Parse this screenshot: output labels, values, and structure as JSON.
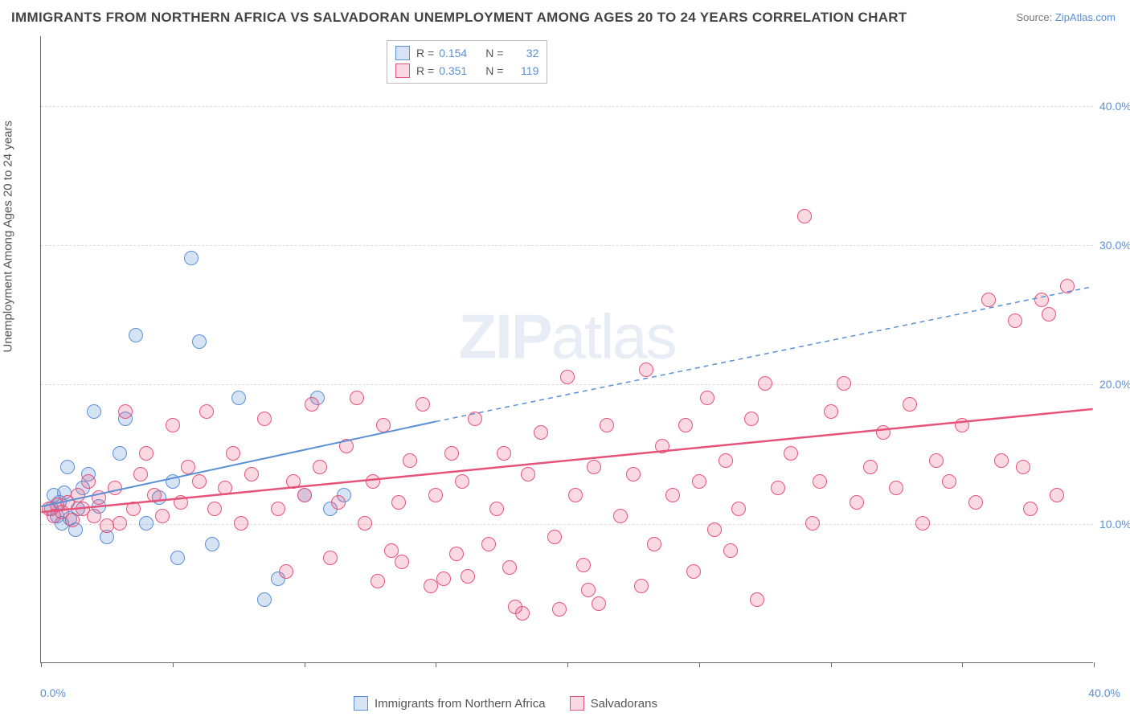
{
  "title": "IMMIGRANTS FROM NORTHERN AFRICA VS SALVADORAN UNEMPLOYMENT AMONG AGES 20 TO 24 YEARS CORRELATION CHART",
  "source_prefix": "Source: ",
  "source_name": "ZipAtlas.com",
  "y_axis_label": "Unemployment Among Ages 20 to 24 years",
  "watermark_bold": "ZIP",
  "watermark_light": "atlas",
  "chart": {
    "type": "scatter",
    "xlim": [
      0,
      40
    ],
    "ylim": [
      0,
      45
    ],
    "x_ticks": [
      0,
      5,
      10,
      15,
      20,
      25,
      30,
      35,
      40
    ],
    "x_tick_labels": {
      "0": "0.0%",
      "40": "40.0%"
    },
    "y_ticks": [
      10,
      20,
      30,
      40
    ],
    "y_tick_labels": [
      "10.0%",
      "20.0%",
      "30.0%",
      "40.0%"
    ],
    "background_color": "#ffffff",
    "grid_color": "#dddddd",
    "point_radius": 9,
    "point_border_width": 1.5,
    "point_fill_opacity": 0.25
  },
  "series": [
    {
      "key": "northern_africa",
      "label": "Immigrants from Northern Africa",
      "R": "0.154",
      "N": "32",
      "color": "#5b8fd6",
      "fill": "rgba(91,143,214,0.25)",
      "trend": {
        "x1": 0,
        "y1": 11.2,
        "x2": 15,
        "y2": 17.3,
        "x_ext": 40,
        "y_ext": 27.0,
        "dash": "6,5",
        "width": 2
      },
      "points": [
        [
          0.4,
          11
        ],
        [
          0.5,
          12
        ],
        [
          0.6,
          10.5
        ],
        [
          0.7,
          11.5
        ],
        [
          0.8,
          10
        ],
        [
          0.9,
          12.2
        ],
        [
          1.0,
          14
        ],
        [
          1.1,
          10.3
        ],
        [
          1.3,
          9.5
        ],
        [
          1.4,
          11
        ],
        [
          1.6,
          12.5
        ],
        [
          1.8,
          13.5
        ],
        [
          2.0,
          18
        ],
        [
          2.2,
          11.2
        ],
        [
          2.5,
          9
        ],
        [
          3.0,
          15
        ],
        [
          3.2,
          17.5
        ],
        [
          3.6,
          23.5
        ],
        [
          4.0,
          10
        ],
        [
          4.5,
          11.8
        ],
        [
          5.0,
          13
        ],
        [
          5.2,
          7.5
        ],
        [
          5.7,
          29
        ],
        [
          6.0,
          23
        ],
        [
          6.5,
          8.5
        ],
        [
          7.5,
          19
        ],
        [
          8.5,
          4.5
        ],
        [
          9.0,
          6
        ],
        [
          10.0,
          12
        ],
        [
          10.5,
          19
        ],
        [
          11.0,
          11
        ],
        [
          11.5,
          12
        ]
      ]
    },
    {
      "key": "salvadorans",
      "label": "Salvadorans",
      "R": "0.351",
      "N": "119",
      "color": "#e6537a",
      "fill": "rgba(230,83,122,0.22)",
      "trend": {
        "x1": 0,
        "y1": 10.8,
        "x2": 40,
        "y2": 18.2,
        "dash": "none",
        "width": 2.5
      },
      "points": [
        [
          0.3,
          11
        ],
        [
          0.5,
          10.5
        ],
        [
          0.6,
          11.3
        ],
        [
          0.8,
          10.8
        ],
        [
          1.0,
          11.5
        ],
        [
          1.2,
          10.2
        ],
        [
          1.4,
          12
        ],
        [
          1.6,
          11
        ],
        [
          1.8,
          13
        ],
        [
          2.0,
          10.5
        ],
        [
          2.2,
          11.8
        ],
        [
          2.5,
          9.8
        ],
        [
          2.8,
          12.5
        ],
        [
          3.0,
          10
        ],
        [
          3.2,
          18
        ],
        [
          3.5,
          11
        ],
        [
          3.8,
          13.5
        ],
        [
          4.0,
          15
        ],
        [
          4.3,
          12
        ],
        [
          4.6,
          10.5
        ],
        [
          5.0,
          17
        ],
        [
          5.3,
          11.5
        ],
        [
          5.6,
          14
        ],
        [
          6.0,
          13
        ],
        [
          6.3,
          18
        ],
        [
          6.6,
          11
        ],
        [
          7.0,
          12.5
        ],
        [
          7.3,
          15
        ],
        [
          7.6,
          10
        ],
        [
          8.0,
          13.5
        ],
        [
          8.5,
          17.5
        ],
        [
          9.0,
          11
        ],
        [
          9.3,
          6.5
        ],
        [
          9.6,
          13
        ],
        [
          10.0,
          12
        ],
        [
          10.3,
          18.5
        ],
        [
          10.6,
          14
        ],
        [
          11.0,
          7.5
        ],
        [
          11.3,
          11.5
        ],
        [
          11.6,
          15.5
        ],
        [
          12.0,
          19
        ],
        [
          12.3,
          10
        ],
        [
          12.6,
          13
        ],
        [
          13.0,
          17
        ],
        [
          13.3,
          8
        ],
        [
          13.6,
          11.5
        ],
        [
          14.0,
          14.5
        ],
        [
          14.5,
          18.5
        ],
        [
          15.0,
          12
        ],
        [
          15.3,
          6
        ],
        [
          15.6,
          15
        ],
        [
          16.0,
          13
        ],
        [
          16.5,
          17.5
        ],
        [
          17.0,
          8.5
        ],
        [
          17.3,
          11
        ],
        [
          17.6,
          15
        ],
        [
          18.0,
          4
        ],
        [
          18.5,
          13.5
        ],
        [
          19.0,
          16.5
        ],
        [
          19.5,
          9
        ],
        [
          20.0,
          20.5
        ],
        [
          20.3,
          12
        ],
        [
          20.6,
          7
        ],
        [
          21.0,
          14
        ],
        [
          21.5,
          17
        ],
        [
          22.0,
          10.5
        ],
        [
          22.5,
          13.5
        ],
        [
          23.0,
          21
        ],
        [
          23.3,
          8.5
        ],
        [
          23.6,
          15.5
        ],
        [
          24.0,
          12
        ],
        [
          24.5,
          17
        ],
        [
          25.0,
          13
        ],
        [
          25.3,
          19
        ],
        [
          25.6,
          9.5
        ],
        [
          26.0,
          14.5
        ],
        [
          26.5,
          11
        ],
        [
          27.0,
          17.5
        ],
        [
          27.5,
          20
        ],
        [
          28.0,
          12.5
        ],
        [
          28.5,
          15
        ],
        [
          29.0,
          32
        ],
        [
          29.3,
          10
        ],
        [
          29.6,
          13
        ],
        [
          30.0,
          18
        ],
        [
          30.5,
          20
        ],
        [
          31.0,
          11.5
        ],
        [
          31.5,
          14
        ],
        [
          32.0,
          16.5
        ],
        [
          32.5,
          12.5
        ],
        [
          33.0,
          18.5
        ],
        [
          33.5,
          10
        ],
        [
          34.0,
          14.5
        ],
        [
          34.5,
          13
        ],
        [
          35.0,
          17
        ],
        [
          35.5,
          11.5
        ],
        [
          36.0,
          26
        ],
        [
          36.5,
          14.5
        ],
        [
          37.0,
          24.5
        ],
        [
          37.3,
          14
        ],
        [
          37.6,
          11
        ],
        [
          38.0,
          26
        ],
        [
          38.3,
          25
        ],
        [
          38.6,
          12
        ],
        [
          39.0,
          27
        ],
        [
          18.3,
          3.5
        ],
        [
          19.7,
          3.8
        ],
        [
          21.2,
          4.2
        ],
        [
          14.8,
          5.5
        ],
        [
          16.2,
          6.2
        ],
        [
          12.8,
          5.8
        ],
        [
          27.2,
          4.5
        ],
        [
          13.7,
          7.2
        ],
        [
          24.8,
          6.5
        ],
        [
          26.2,
          8
        ],
        [
          17.8,
          6.8
        ],
        [
          22.8,
          5.5
        ],
        [
          20.8,
          5.2
        ],
        [
          15.8,
          7.8
        ]
      ]
    }
  ],
  "legend_top": {
    "R_label": "R =",
    "N_label": "N ="
  }
}
